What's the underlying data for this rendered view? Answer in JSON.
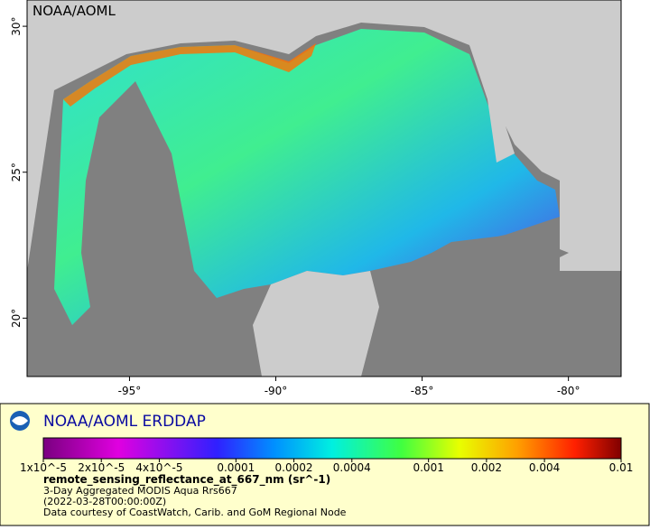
{
  "map": {
    "watermark": "NOAA/AOML",
    "xlim": [
      -98.5,
      -78.2
    ],
    "ylim": [
      18.0,
      30.9
    ],
    "xticks": [
      {
        "value": -95,
        "label": "-95°"
      },
      {
        "value": -90,
        "label": "-90°"
      },
      {
        "value": -85,
        "label": "-85°"
      },
      {
        "value": -80,
        "label": "-80°"
      }
    ],
    "yticks": [
      {
        "value": 20,
        "label": "20°"
      },
      {
        "value": 25,
        "label": "25°"
      },
      {
        "value": 30,
        "label": "30°"
      }
    ]
  },
  "legend": {
    "title": "NOAA/AOML ERDDAP",
    "colorbar": {
      "log": true,
      "clim": [
        1e-05,
        0.01
      ],
      "ticks": [
        {
          "value": 1e-05,
          "label": "1x10^-5"
        },
        {
          "value": 2e-05,
          "label": "2x10^-5"
        },
        {
          "value": 4e-05,
          "label": "4x10^-5"
        },
        0.0001,
        0.0002,
        0.0004,
        0.001,
        0.002,
        0.004,
        0.01
      ]
    },
    "variable": "remote_sensing_reflectance_at_667_nm (sr^-1)",
    "dataset": "3-Day Aggregated MODIS Aqua Rrs667",
    "time": "(2022-03-28T00:00:00Z)",
    "credit": "Data courtesy of CoastWatch, Carib. and GoM Regional Node"
  }
}
